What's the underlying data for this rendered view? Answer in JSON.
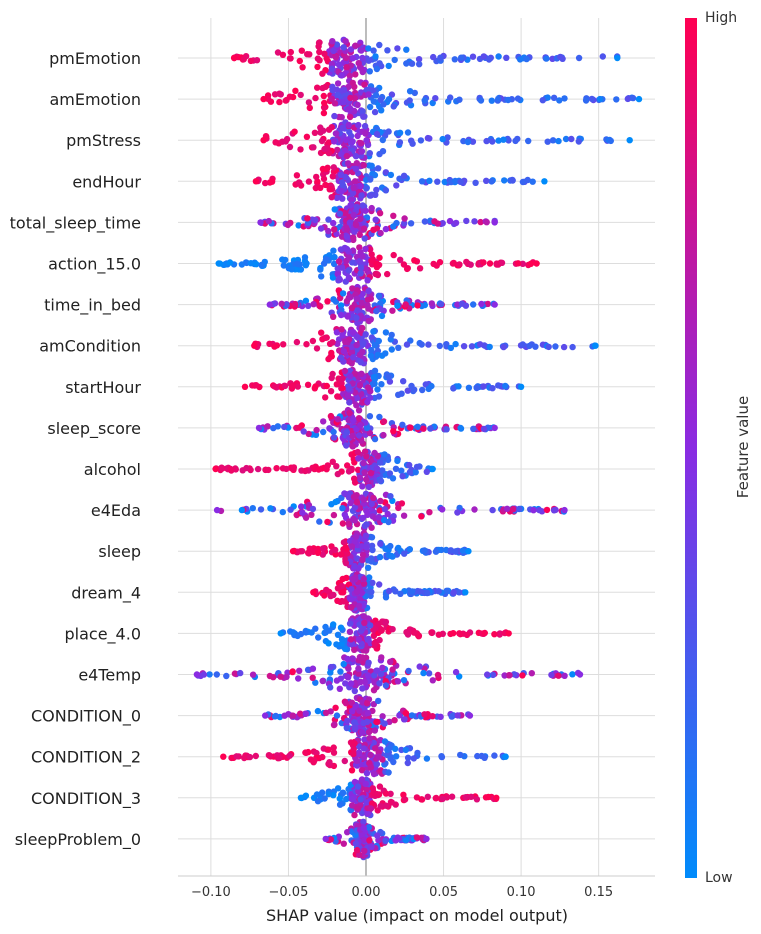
{
  "chart_data": {
    "type": "scatter",
    "subtype": "shap-beeswarm",
    "xlabel": "SHAP value (impact on model output)",
    "xlim": [
      -0.12,
      0.19
    ],
    "xticks": [
      -0.1,
      -0.05,
      0.0,
      0.05,
      0.1,
      0.15
    ],
    "xtick_labels": [
      "−0.10",
      "−0.05",
      "0.00",
      "0.05",
      "0.10",
      "0.15"
    ],
    "grid": "horizontal per feature, vertical at x ticks",
    "colorbar": {
      "label": "Feature value",
      "high_label": "High",
      "low_label": "Low",
      "high_color": "#ff0052",
      "mid_color": "#8a2be2",
      "low_color": "#008bfb"
    },
    "features": [
      {
        "name": "pmEmotion",
        "min": -0.085,
        "max": 0.162,
        "peak": -0.012,
        "high_side": "neg"
      },
      {
        "name": "amEmotion",
        "min": -0.066,
        "max": 0.176,
        "peak": -0.01,
        "high_side": "neg"
      },
      {
        "name": "pmStress",
        "min": -0.066,
        "max": 0.17,
        "peak": -0.01,
        "high_side": "neg"
      },
      {
        "name": "endHour",
        "min": -0.071,
        "max": 0.115,
        "peak": -0.01,
        "high_side": "neg"
      },
      {
        "name": "total_sleep_time",
        "min": -0.068,
        "max": 0.083,
        "peak": -0.008,
        "high_side": "mixed"
      },
      {
        "name": "action_15.0",
        "min": -0.095,
        "max": 0.11,
        "peak": -0.008,
        "high_side": "pos"
      },
      {
        "name": "time_in_bed",
        "min": -0.062,
        "max": 0.083,
        "peak": -0.006,
        "high_side": "mixed"
      },
      {
        "name": "amCondition",
        "min": -0.072,
        "max": 0.148,
        "peak": -0.008,
        "high_side": "neg"
      },
      {
        "name": "startHour",
        "min": -0.078,
        "max": 0.1,
        "peak": -0.006,
        "high_side": "neg"
      },
      {
        "name": "sleep_score",
        "min": -0.069,
        "max": 0.083,
        "peak": -0.008,
        "high_side": "mixed"
      },
      {
        "name": "alcohol",
        "min": -0.097,
        "max": 0.043,
        "peak": 0.002,
        "high_side": "neg"
      },
      {
        "name": "e4Eda",
        "min": -0.096,
        "max": 0.128,
        "peak": -0.003,
        "high_side": "mixed"
      },
      {
        "name": "sleep",
        "min": -0.047,
        "max": 0.066,
        "peak": -0.005,
        "high_side": "neg"
      },
      {
        "name": "dream_4",
        "min": -0.034,
        "max": 0.064,
        "peak": -0.006,
        "high_side": "neg"
      },
      {
        "name": "place_4.0",
        "min": -0.055,
        "max": 0.092,
        "peak": -0.004,
        "high_side": "pos"
      },
      {
        "name": "e4Temp",
        "min": -0.109,
        "max": 0.138,
        "peak": -0.002,
        "high_side": "mixed"
      },
      {
        "name": "CONDITION_0",
        "min": -0.065,
        "max": 0.067,
        "peak": -0.003,
        "high_side": "mixed"
      },
      {
        "name": "CONDITION_2",
        "min": -0.092,
        "max": 0.09,
        "peak": 0.002,
        "high_side": "neg"
      },
      {
        "name": "CONDITION_3",
        "min": -0.042,
        "max": 0.084,
        "peak": -0.003,
        "high_side": "pos"
      },
      {
        "name": "sleepProblem_0",
        "min": -0.026,
        "max": 0.039,
        "peak": -0.002,
        "high_side": "mixed"
      }
    ]
  }
}
